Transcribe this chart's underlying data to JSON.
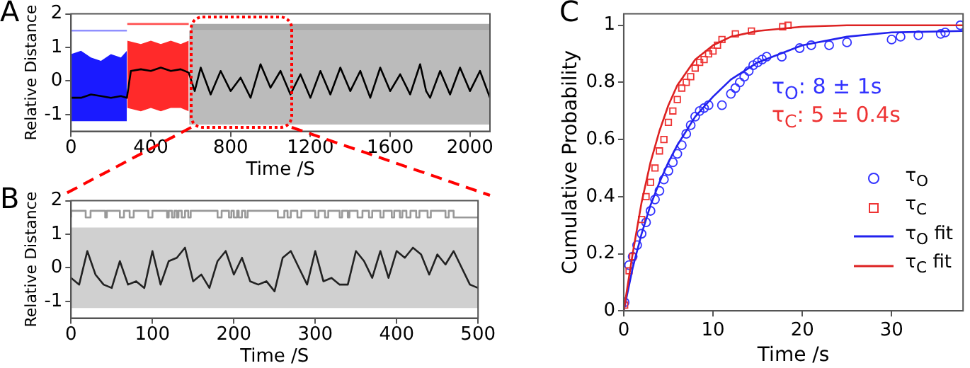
{
  "chart_data": [
    {
      "type": "line",
      "title": "A",
      "xlabel": "Time /S",
      "ylabel": "Relative Distance",
      "xlim": [
        0,
        2100
      ],
      "ylim": [
        -1.5,
        2
      ],
      "xticks": [
        0,
        400,
        800,
        1200,
        1600,
        2000
      ],
      "yticks": [
        -1,
        0,
        1,
        2
      ],
      "series": [
        {
          "type": "line",
          "color": "#1a1aff",
          "x": [
            0,
            50,
            100,
            150,
            200,
            250,
            280
          ],
          "values": [
            null,
            null,
            null,
            null,
            null,
            null,
            null
          ],
          "lower": [
            -1.2,
            -1.2,
            -1.2,
            -1.2,
            -1.2,
            -1.2,
            -1.2
          ],
          "upper": [
            0.8,
            0.9,
            0.7,
            0.6,
            0.8,
            0.7,
            0.9
          ]
        },
        {
          "type": "line",
          "color": "#ff2a2a",
          "x": [
            282,
            350,
            400,
            450,
            500,
            550,
            590
          ],
          "values": [
            null,
            null,
            null,
            null,
            null,
            null,
            null
          ],
          "lower": [
            -0.8,
            -0.9,
            -0.8,
            -0.9,
            -0.8,
            -0.8,
            -0.9
          ],
          "upper": [
            1.2,
            1.1,
            1.2,
            1.1,
            1.2,
            1.1,
            1.2
          ]
        },
        {
          "type": "line",
          "color": "#bbbbbb",
          "x": [
            592,
            800,
            1000,
            1200,
            1400,
            1600,
            1800,
            2000,
            2100
          ],
          "values": [
            null,
            null,
            null,
            null,
            null,
            null,
            null,
            null,
            null
          ],
          "lower": [
            -1.3,
            -1.3,
            -1.3,
            -1.3,
            -1.3,
            -1.3,
            -1.3,
            -1.3,
            -1.3
          ],
          "upper": [
            1.5,
            1.5,
            1.5,
            1.5,
            1.5,
            1.5,
            1.5,
            1.5,
            1.5
          ]
        },
        {
          "type": "line",
          "color": "#aaaaaa",
          "x": [
            600,
            2100
          ],
          "values": [
            null,
            null
          ],
          "lower": [
            1.5,
            1.5
          ],
          "upper": [
            1.7,
            1.7
          ]
        },
        {
          "type": "line",
          "color": "#9090ff",
          "x": [
            0,
            280
          ],
          "values": [
            1.5,
            1.5
          ]
        },
        {
          "type": "line",
          "color": "#ff5050",
          "x": [
            282,
            590
          ],
          "values": [
            1.7,
            1.7
          ]
        },
        {
          "type": "line",
          "color": "#000000",
          "x": [
            0,
            50,
            100,
            150,
            200,
            250,
            280,
            300,
            350,
            400,
            450,
            500,
            550,
            590,
            620,
            650,
            700,
            750,
            800,
            850,
            900,
            950,
            1000,
            1050,
            1100,
            1150,
            1200,
            1250,
            1300,
            1350,
            1400,
            1450,
            1500,
            1550,
            1600,
            1650,
            1700,
            1750,
            1780,
            1800,
            1850,
            1900,
            1950,
            2000,
            2050,
            2100
          ],
          "values": [
            -0.5,
            -0.5,
            -0.4,
            -0.45,
            -0.5,
            -0.45,
            -0.5,
            0.3,
            0.35,
            0.3,
            0.4,
            0.3,
            0.35,
            0.25,
            -0.3,
            0.4,
            -0.4,
            0.3,
            -0.3,
            0.1,
            -0.5,
            0.5,
            -0.2,
            0.3,
            -0.4,
            0.2,
            -0.5,
            0.3,
            -0.4,
            0.4,
            -0.3,
            0.3,
            -0.5,
            0.4,
            -0.3,
            0.2,
            -0.4,
            0.5,
            -0.3,
            -0.5,
            0.3,
            -0.4,
            0.4,
            -0.3,
            0.3,
            -0.5
          ]
        }
      ]
    },
    {
      "type": "line",
      "title": "B",
      "xlabel": "Time /S",
      "ylabel": "Relative Distance",
      "xlim": [
        0,
        500
      ],
      "ylim": [
        -1.5,
        2
      ],
      "xticks": [
        0,
        100,
        200,
        300,
        400,
        500
      ],
      "yticks": [
        -1,
        0,
        1,
        2
      ],
      "series": [
        {
          "type": "line",
          "color": "#d0d0d0",
          "x": [
            0,
            50,
            100,
            150,
            200,
            250,
            300,
            350,
            400,
            450,
            500
          ],
          "values": [
            null,
            null,
            null,
            null,
            null,
            null,
            null,
            null,
            null,
            null,
            null
          ],
          "lower": [
            -1.2,
            -1.2,
            -1.2,
            -1.2,
            -1.2,
            -1.2,
            -1.2,
            -1.2,
            -1.2,
            -1.2,
            -1.2
          ],
          "upper": [
            1.2,
            1.2,
            1.2,
            1.2,
            1.2,
            1.2,
            1.2,
            1.2,
            1.2,
            1.2,
            1.2
          ]
        },
        {
          "type": "step",
          "color": "#999999",
          "x": [
            0,
            18,
            24,
            42,
            44,
            60,
            65,
            72,
            77,
            95,
            100,
            118,
            120,
            124,
            127,
            130,
            132,
            136,
            140,
            144,
            147,
            180,
            185,
            194,
            197,
            200,
            204,
            206,
            210,
            214,
            217,
            254,
            262,
            266,
            270,
            278,
            283,
            300,
            304,
            312,
            316,
            330,
            333,
            340,
            342,
            352,
            358,
            366,
            370,
            380,
            384,
            394,
            397,
            404,
            407,
            412,
            417,
            424,
            428,
            438,
            442,
            460,
            464,
            470,
            473,
            500
          ],
          "values": [
            1.5,
            1.7,
            1.5,
            1.7,
            1.5,
            1.7,
            1.5,
            1.7,
            1.5,
            1.7,
            1.5,
            1.7,
            1.5,
            1.7,
            1.5,
            1.7,
            1.5,
            1.7,
            1.5,
            1.7,
            1.5,
            1.7,
            1.5,
            1.7,
            1.5,
            1.7,
            1.5,
            1.7,
            1.5,
            1.7,
            1.5,
            1.7,
            1.5,
            1.7,
            1.5,
            1.7,
            1.5,
            1.7,
            1.5,
            1.7,
            1.5,
            1.7,
            1.5,
            1.7,
            1.5,
            1.7,
            1.5,
            1.7,
            1.5,
            1.7,
            1.5,
            1.7,
            1.5,
            1.7,
            1.5,
            1.7,
            1.5,
            1.7,
            1.5,
            1.7,
            1.5,
            1.7,
            1.5,
            1.7,
            1.5,
            1.5
          ]
        },
        {
          "type": "line",
          "color": "#222222",
          "x": [
            0,
            10,
            20,
            30,
            40,
            50,
            60,
            70,
            80,
            90,
            100,
            110,
            120,
            130,
            140,
            150,
            160,
            170,
            180,
            190,
            200,
            210,
            220,
            230,
            240,
            250,
            260,
            270,
            280,
            290,
            300,
            310,
            320,
            330,
            340,
            350,
            360,
            370,
            380,
            390,
            400,
            410,
            420,
            430,
            440,
            450,
            460,
            470,
            480,
            490,
            500
          ],
          "values": [
            -0.3,
            -0.5,
            0.5,
            -0.2,
            -0.5,
            -0.6,
            0.2,
            -0.5,
            -0.4,
            -0.6,
            0.5,
            -0.5,
            0.2,
            0.3,
            0.6,
            -0.4,
            -0.2,
            -0.6,
            0.2,
            0.5,
            -0.2,
            0.3,
            -0.4,
            -0.5,
            -0.4,
            -0.7,
            0.3,
            0.5,
            0.0,
            -0.5,
            0.5,
            -0.4,
            -0.3,
            -0.5,
            -0.5,
            0.5,
            0.2,
            -0.3,
            0.5,
            -0.3,
            0.5,
            0.3,
            0.6,
            0.4,
            -0.2,
            0.4,
            0.1,
            0.5,
            0.0,
            -0.5,
            -0.6
          ]
        }
      ]
    },
    {
      "type": "line",
      "title": "C",
      "xlabel": "Time /s",
      "ylabel": "Cumulative Probability",
      "xlim": [
        0,
        38
      ],
      "ylim": [
        0,
        1.04
      ],
      "xticks": [
        0,
        10,
        20,
        30
      ],
      "yticks": [
        0,
        0.2,
        0.4,
        0.6,
        0.8,
        1
      ],
      "legend": "bottom right",
      "annotations": [
        "τ$_{O}$: 8 ± 1s",
        "τ$_{C}$: 5 ± 0.4s"
      ],
      "series": [
        {
          "type": "scatter",
          "name": "τ$_{O}$",
          "color": "#3333ff",
          "marker": "circle",
          "x": [
            0.1,
            0.3,
            0.6,
            1,
            1.5,
            2,
            2.5,
            3,
            3.5,
            4,
            4.5,
            5,
            5.5,
            6,
            6.5,
            7,
            7.5,
            8,
            8.5,
            9,
            9.5,
            11,
            12,
            12.5,
            13,
            13.5,
            14,
            14.5,
            15,
            15.5,
            16,
            17.7,
            19.7,
            21,
            23,
            25,
            30,
            31,
            33,
            35.5,
            36,
            37.7
          ],
          "values": [
            0.03,
            null,
            0.16,
            0.19,
            0.23,
            0.27,
            0.31,
            0.35,
            0.39,
            0.42,
            0.46,
            0.49,
            0.52,
            0.55,
            0.58,
            0.62,
            0.65,
            0.68,
            0.7,
            0.71,
            0.72,
            0.72,
            0.76,
            0.78,
            0.8,
            0.82,
            0.84,
            0.86,
            0.87,
            0.88,
            0.89,
            0.89,
            0.92,
            0.93,
            0.93,
            0.94,
            0.95,
            0.96,
            0.965,
            0.97,
            0.975,
            1
          ]
        },
        {
          "type": "scatter",
          "name": "τ$_{C}$",
          "color": "#ee3333",
          "marker": "square",
          "x": [
            0.1,
            0.3,
            0.6,
            1,
            1.5,
            2,
            2.5,
            3,
            3.5,
            4,
            4.5,
            5,
            5.5,
            6,
            6.5,
            7,
            7.5,
            8,
            8.5,
            9,
            9.5,
            10,
            10.5,
            11,
            12.5,
            14.3,
            17.8,
            18.4
          ],
          "values": [
            0.02,
            null,
            0.14,
            0.19,
            null,
            0.32,
            0.4,
            0.45,
            0.5,
            0.56,
            0.6,
            0.66,
            0.7,
            0.74,
            0.78,
            0.8,
            0.82,
            0.85,
            0.87,
            0.88,
            0.9,
            0.91,
            0.93,
            0.95,
            0.97,
            0.98,
            0.995,
            1
          ]
        },
        {
          "type": "line",
          "name": "τ$_{O}$ fit",
          "color": "#2222ee",
          "x": [
            0,
            1,
            2,
            3,
            4,
            5,
            6,
            8,
            10,
            12,
            15,
            20,
            25,
            30,
            38
          ],
          "values": [
            0,
            0.15,
            0.27,
            0.37,
            0.45,
            0.52,
            0.58,
            0.68,
            0.75,
            0.81,
            0.87,
            0.93,
            0.96,
            0.975,
            0.98
          ]
        },
        {
          "type": "line",
          "name": "τ$_{C}$ fit",
          "color": "#dd2222",
          "x": [
            0,
            1,
            2,
            3,
            4,
            5,
            6,
            8,
            10,
            12,
            15,
            20,
            25,
            30,
            38
          ],
          "values": [
            0,
            0.2,
            0.38,
            0.52,
            0.63,
            0.72,
            0.79,
            0.88,
            0.93,
            0.96,
            0.98,
            0.995,
            1,
            1,
            1
          ]
        }
      ]
    }
  ]
}
